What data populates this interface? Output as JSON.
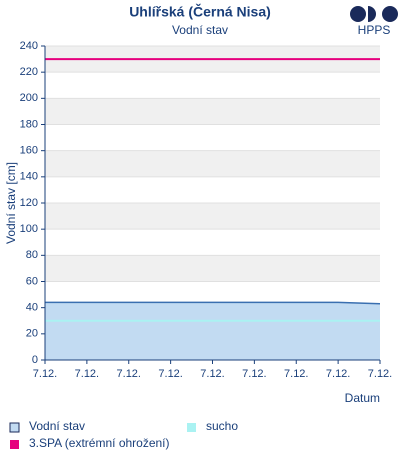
{
  "chart_data": {
    "type": "line",
    "title": "Uhlířská (Černá Nisa)",
    "subtitle": "Vodní stav",
    "logo_text": "HPPS",
    "x_label": "Datum",
    "y_label": "Vodní stav [cm]",
    "categories": [
      "7.12.",
      "7.12.",
      "7.12.",
      "7.12.",
      "7.12.",
      "7.12.",
      "7.12.",
      "7.12.",
      "7.12."
    ],
    "series": [
      {
        "name": "Vodní stav",
        "color": "#3a6fb0",
        "fill": "#c2dbf2",
        "values": [
          44,
          44,
          44,
          44,
          44,
          44,
          44,
          44,
          43
        ]
      }
    ],
    "thresholds": [
      {
        "name": "sucho",
        "value": 30,
        "color": "#aaf2f2"
      },
      {
        "name": "3.SPA (extrémní ohrožení)",
        "value": 230,
        "color": "#e6007e"
      }
    ],
    "ylim": [
      0,
      240
    ],
    "yticks": [
      0,
      20,
      40,
      60,
      80,
      100,
      120,
      140,
      160,
      180,
      200,
      220,
      240
    ],
    "grid": true
  }
}
